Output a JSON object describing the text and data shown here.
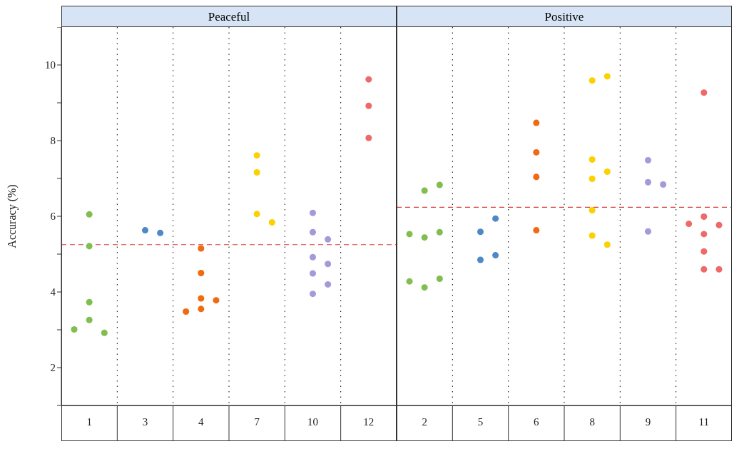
{
  "chart_data": [
    {
      "type": "scatter",
      "title": "Peaceful",
      "ylabel": "Accuracy (%)",
      "marker": "circle",
      "categories": [
        "1",
        "3",
        "4",
        "7",
        "10",
        "12"
      ],
      "ylim": [
        1,
        11
      ],
      "yticks": [
        {
          "value": 1,
          "label": null
        },
        2,
        {
          "value": 3,
          "label": null
        },
        4,
        {
          "value": 5,
          "label": null
        },
        6,
        {
          "value": 7,
          "label": null
        },
        8,
        {
          "value": 9,
          "label": null
        },
        10,
        {
          "value": 11,
          "label": null
        }
      ],
      "ref_lines": [
        {
          "axis": "y",
          "value": 5.25,
          "color": "#d9413e",
          "line_style": "dashed"
        }
      ],
      "series": [
        {
          "type": "scatter",
          "color": "#82bd52",
          "x": [
            "1",
            "1",
            "1",
            "1",
            "1",
            "1"
          ],
          "values": [
            6.05,
            5.21,
            3.73,
            3.26,
            2.92,
            3.01
          ]
        },
        {
          "type": "scatter",
          "color": "#4e88c6",
          "x": [
            "3",
            "3"
          ],
          "values": [
            5.63,
            5.56
          ]
        },
        {
          "type": "scatter",
          "color": "#ef6a10",
          "x": [
            "4",
            "4",
            "4",
            "4",
            "4",
            "4"
          ],
          "values": [
            5.15,
            4.5,
            3.83,
            3.78,
            3.48,
            3.55
          ]
        },
        {
          "type": "scatter",
          "color": "#fbd100",
          "x": [
            "7",
            "7",
            "7",
            "7"
          ],
          "values": [
            7.61,
            7.16,
            6.06,
            5.84
          ]
        },
        {
          "type": "scatter",
          "color": "#a39bd9",
          "x": [
            "10",
            "10",
            "10",
            "10",
            "10",
            "10",
            "10",
            "10"
          ],
          "values": [
            6.09,
            5.58,
            5.39,
            4.92,
            4.74,
            4.49,
            4.2,
            3.95
          ]
        },
        {
          "type": "scatter",
          "color": "#ee6a6a",
          "x": [
            "12",
            "12",
            "12"
          ],
          "values": [
            9.62,
            8.92,
            8.07
          ]
        }
      ]
    },
    {
      "type": "scatter",
      "title": "Positive",
      "marker": "circle",
      "tick_labels": "x",
      "categories": [
        "2",
        "5",
        "6",
        "8",
        "9",
        "11"
      ],
      "ylim": [
        1,
        11
      ],
      "ref_lines": [
        {
          "axis": "y",
          "value": 6.24,
          "color": "#d9413e",
          "line_style": "dashed"
        }
      ],
      "series": [
        {
          "type": "scatter",
          "color": "#82bd52",
          "x": [
            "2",
            "2",
            "2",
            "2",
            "2",
            "2",
            "2",
            "2"
          ],
          "values": [
            6.68,
            6.83,
            5.44,
            5.58,
            5.53,
            4.12,
            4.35,
            4.28
          ]
        },
        {
          "type": "scatter",
          "color": "#4e88c6",
          "x": [
            "5",
            "5",
            "5",
            "5"
          ],
          "values": [
            5.59,
            5.94,
            4.85,
            4.97
          ]
        },
        {
          "type": "scatter",
          "color": "#ef6a10",
          "x": [
            "6",
            "6",
            "6",
            "6"
          ],
          "values": [
            8.47,
            7.69,
            7.04,
            5.63
          ]
        },
        {
          "type": "scatter",
          "color": "#fbd100",
          "x": [
            "8",
            "8",
            "8",
            "8",
            "8",
            "8",
            "8",
            "8"
          ],
          "values": [
            9.59,
            9.7,
            7.5,
            7.18,
            6.99,
            6.16,
            5.49,
            5.25
          ]
        },
        {
          "type": "scatter",
          "color": "#a39bd9",
          "x": [
            "9",
            "9",
            "9",
            "9"
          ],
          "values": [
            7.48,
            6.9,
            6.84,
            5.6
          ]
        },
        {
          "type": "scatter",
          "color": "#ee6a6a",
          "x": [
            "11",
            "11",
            "11",
            "11",
            "11",
            "11",
            "11",
            "11"
          ],
          "values": [
            9.27,
            5.99,
            5.77,
            5.8,
            5.53,
            5.07,
            4.6,
            4.6
          ]
        }
      ]
    }
  ]
}
